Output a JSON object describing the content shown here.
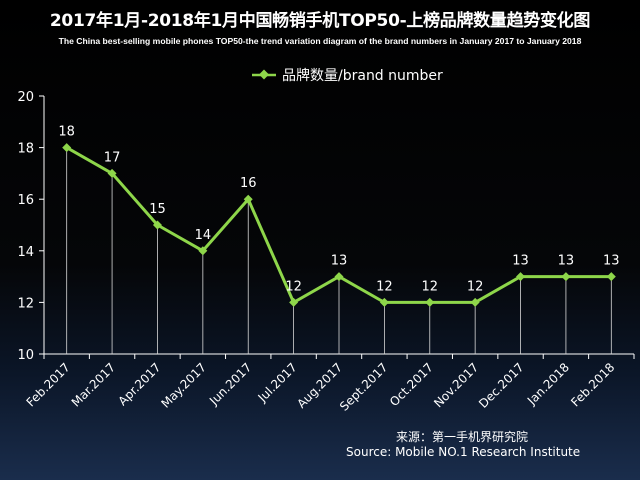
{
  "chart_data": {
    "type": "line",
    "title": "2017年1月-2018年1月中国畅销手机TOP50-上榜品牌数量趋势变化图",
    "subtitle": "The China best-selling mobile phones TOP50-the trend variation diagram of the brand numbers in January 2017 to January 2018",
    "categories": [
      "Feb.2017",
      "Mar.2017",
      "Apr.2017",
      "May.2017",
      "Jun.2017",
      "Jul.2017",
      "Aug.2017",
      "Sept.2017",
      "Oct.2017",
      "Nov.2017",
      "Dec.2017",
      "Jan.2018",
      "Feb.2018"
    ],
    "series": [
      {
        "name": "品牌数量/brand number",
        "values": [
          18,
          17,
          15,
          14,
          16,
          12,
          13,
          12,
          12,
          12,
          13,
          13,
          13
        ],
        "color": "#8ed64a"
      }
    ],
    "ylim": [
      10,
      20
    ],
    "yticks": [
      10,
      12,
      14,
      16,
      18,
      20
    ],
    "grid": false,
    "legend": "top-center",
    "data_labels": true
  },
  "source": {
    "cn": "来源：第一手机界研究院",
    "en": "Source: Mobile NO.1 Research Institute"
  },
  "colors": {
    "line": "#8ed64a",
    "axis": "#ffffff",
    "drop_lines": "#d8d8d8",
    "text": "#ffffff"
  }
}
